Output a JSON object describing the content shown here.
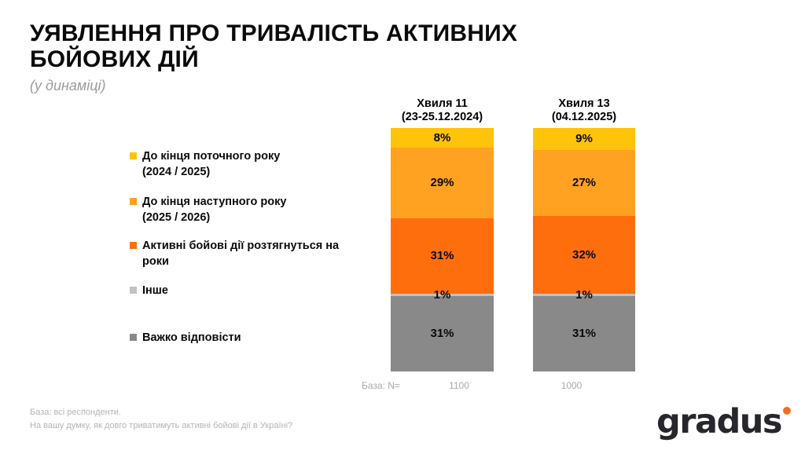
{
  "slide": {
    "title_lines": [
      "УЯВЛЕННЯ ПРО ТРИВАЛІСТЬ АКТИВНИХ",
      "БОЙОВИХ ДІЙ"
    ],
    "title_full": "УЯВЛЕННЯ ПРО ТРИВАЛІСТЬ АКТИВНИХ БОЙОВИХ ДІЙ",
    "subtitle": "(у динаміці)"
  },
  "chart_data": {
    "type": "bar",
    "stacked": true,
    "orientation": "vertical",
    "title": "УЯВЛЕННЯ ПРО ТРИВАЛІСТЬ АКТИВНИХ БОЙОВИХ ДІЙ (у динаміці)",
    "categories": [
      {
        "line1": "Хвиля 11",
        "line2": "(23-25.12.2024)"
      },
      {
        "line1": "Хвиля 13",
        "line2": "(04.12.2025)"
      }
    ],
    "series": [
      {
        "name": "До кінця поточного року (2024 / 2025)",
        "lines": [
          "До кінця поточного року",
          "(2024 / 2025)"
        ],
        "color": "#FFC30B",
        "values": [
          8,
          9
        ]
      },
      {
        "name": "До кінця наступного року (2025 / 2026)",
        "lines": [
          "До кінця наступного року",
          "(2025 / 2026)"
        ],
        "color": "#FFA121",
        "values": [
          29,
          27
        ]
      },
      {
        "name": "Активні бойові дії розтягнуться на роки",
        "lines": [
          "Активні бойові дії розтягнуться на",
          "роки"
        ],
        "color": "#FF6E0C",
        "values": [
          31,
          32
        ]
      },
      {
        "name": "Інше",
        "lines": [
          "Інше"
        ],
        "color": "#C1C1C1",
        "values": [
          1,
          1
        ]
      },
      {
        "name": "Важко відповісти",
        "lines": [
          "Важко відповісти"
        ],
        "color": "#898989",
        "values": [
          31,
          31
        ]
      }
    ],
    "value_suffix": "%",
    "ylim": [
      0,
      100
    ],
    "grid": false,
    "legend_position": "left"
  },
  "base_row": {
    "label": "База: N=",
    "values": [
      "1100",
      "1000"
    ]
  },
  "footer": {
    "line1": "База: всі респонденти.",
    "line2": "На вашу думку, як довго триватимуть активні бойові дії в Україні?"
  },
  "logo": {
    "text": "gradus",
    "text_color": "#26262c",
    "dot_color": "#F26F21"
  }
}
